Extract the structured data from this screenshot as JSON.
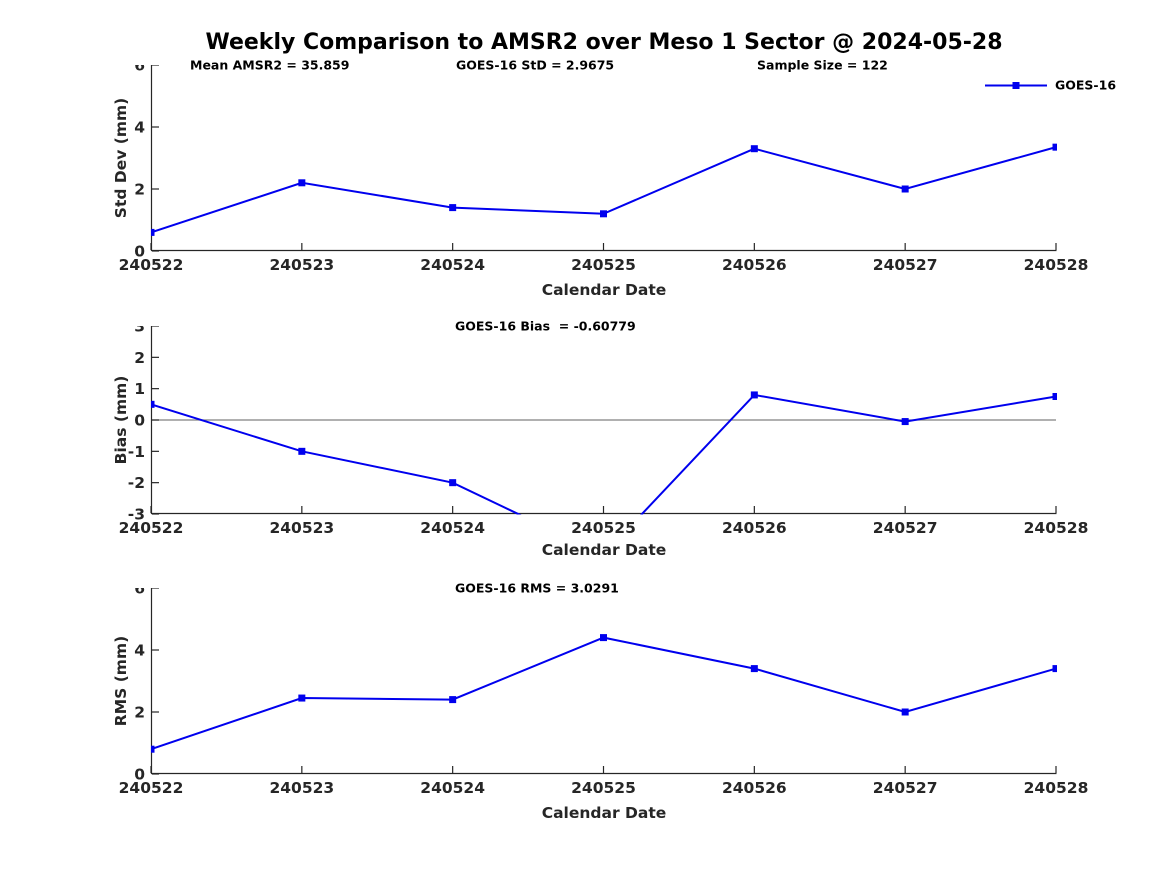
{
  "title": "Weekly Comparison to AMSR2 over Meso 1 Sector @ 2024-05-28",
  "legend": {
    "label": "GOES-16",
    "position": "top-right"
  },
  "colors": {
    "line": "#0000EE",
    "zero_line": "#808080",
    "axis": "#262626",
    "text": "#000000",
    "background": "#ffffff"
  },
  "chart_data": [
    {
      "type": "line",
      "id": "std-dev",
      "marker": "square",
      "annotations": [
        {
          "text": "Mean AMSR2 = 35.859"
        },
        {
          "text": "GOES-16 StD = 2.9675"
        },
        {
          "text": "Sample Size = 122"
        }
      ],
      "categories": [
        "240522",
        "240523",
        "240524",
        "240525",
        "240526",
        "240527",
        "240528"
      ],
      "series": [
        {
          "name": "GOES-16",
          "values": [
            0.6,
            2.2,
            1.4,
            1.2,
            3.3,
            2.0,
            3.35
          ]
        }
      ],
      "xlabel": "Calendar Date",
      "ylabel": "Std Dev (mm)",
      "ylim": [
        0,
        6
      ],
      "yticks": [
        0,
        2,
        4,
        6
      ],
      "grid": false,
      "zero_line": false,
      "legend_position": "top-right"
    },
    {
      "type": "line",
      "id": "bias",
      "marker": "square",
      "annotations": [
        {
          "text": "GOES-16 Bias  = -0.60779"
        }
      ],
      "categories": [
        "240522",
        "240523",
        "240524",
        "240525",
        "240526",
        "240527",
        "240528"
      ],
      "series": [
        {
          "name": "GOES-16",
          "values": [
            0.5,
            -1.0,
            -2.0,
            -4.3,
            0.8,
            -0.05,
            0.75
          ]
        }
      ],
      "xlabel": "Calendar Date",
      "ylabel": "Bias (mm)",
      "ylim": [
        -3,
        3
      ],
      "yticks": [
        3,
        2,
        1,
        0,
        -1,
        -2,
        -3
      ],
      "grid": false,
      "zero_line": true
    },
    {
      "type": "line",
      "id": "rms",
      "marker": "square",
      "annotations": [
        {
          "text": "GOES-16 RMS = 3.0291"
        }
      ],
      "categories": [
        "240522",
        "240523",
        "240524",
        "240525",
        "240526",
        "240527",
        "240528"
      ],
      "series": [
        {
          "name": "GOES-16",
          "values": [
            0.8,
            2.45,
            2.4,
            4.4,
            3.4,
            2.0,
            3.4
          ]
        }
      ],
      "xlabel": "Calendar Date",
      "ylabel": "RMS (mm)",
      "ylim": [
        0,
        6
      ],
      "yticks": [
        0,
        2,
        4,
        6
      ],
      "grid": false,
      "zero_line": false
    }
  ]
}
